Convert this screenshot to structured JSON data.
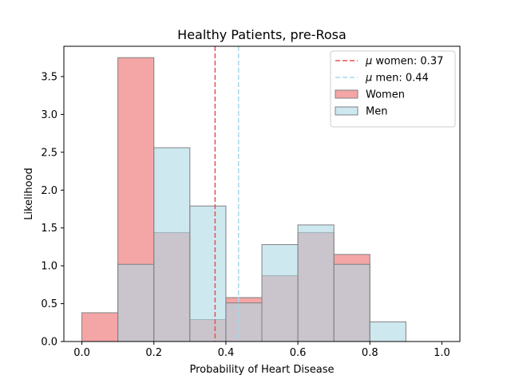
{
  "chart_data": {
    "type": "histogram",
    "title": "Healthy Patients, pre-Rosa",
    "xlabel": "Probability of Heart Disease",
    "ylabel": "Likelihood",
    "xlim": [
      -0.05,
      1.05
    ],
    "ylim": [
      0,
      3.9
    ],
    "xticks": [
      0.0,
      0.2,
      0.4,
      0.6,
      0.8,
      1.0
    ],
    "xtick_labels": [
      "0.0",
      "0.2",
      "0.4",
      "0.6",
      "0.8",
      "1.0"
    ],
    "yticks": [
      0.0,
      0.5,
      1.0,
      1.5,
      2.0,
      2.5,
      3.0,
      3.5
    ],
    "ytick_labels": [
      "0.0",
      "0.5",
      "1.0",
      "1.5",
      "2.0",
      "2.5",
      "3.0",
      "3.5"
    ],
    "grid": false,
    "legend_position": "top-right",
    "bin_edges": [
      0.0,
      0.1,
      0.2,
      0.3,
      0.4,
      0.5,
      0.6,
      0.7,
      0.8,
      0.9,
      1.0
    ],
    "series": [
      {
        "name": "Women",
        "color": "#f08080",
        "alpha": 0.7,
        "edgecolor": "#808080",
        "values": [
          0.38,
          3.75,
          1.44,
          0.29,
          0.58,
          0.87,
          1.44,
          1.15,
          0.0,
          0.0
        ]
      },
      {
        "name": "Men",
        "color": "#add8e6",
        "alpha": 0.6,
        "edgecolor": "#808080",
        "values": [
          0.0,
          1.02,
          2.56,
          1.79,
          0.51,
          1.28,
          1.54,
          1.02,
          0.26,
          0.0
        ]
      }
    ],
    "vlines": [
      {
        "mu": "μ",
        "label": " women: 0.37",
        "x": 0.37,
        "color": "#e8524a",
        "style": "dashed"
      },
      {
        "mu": "μ",
        "label": " men: 0.44",
        "x": 0.435,
        "color": "#a8d8ea",
        "style": "dashed"
      }
    ]
  }
}
